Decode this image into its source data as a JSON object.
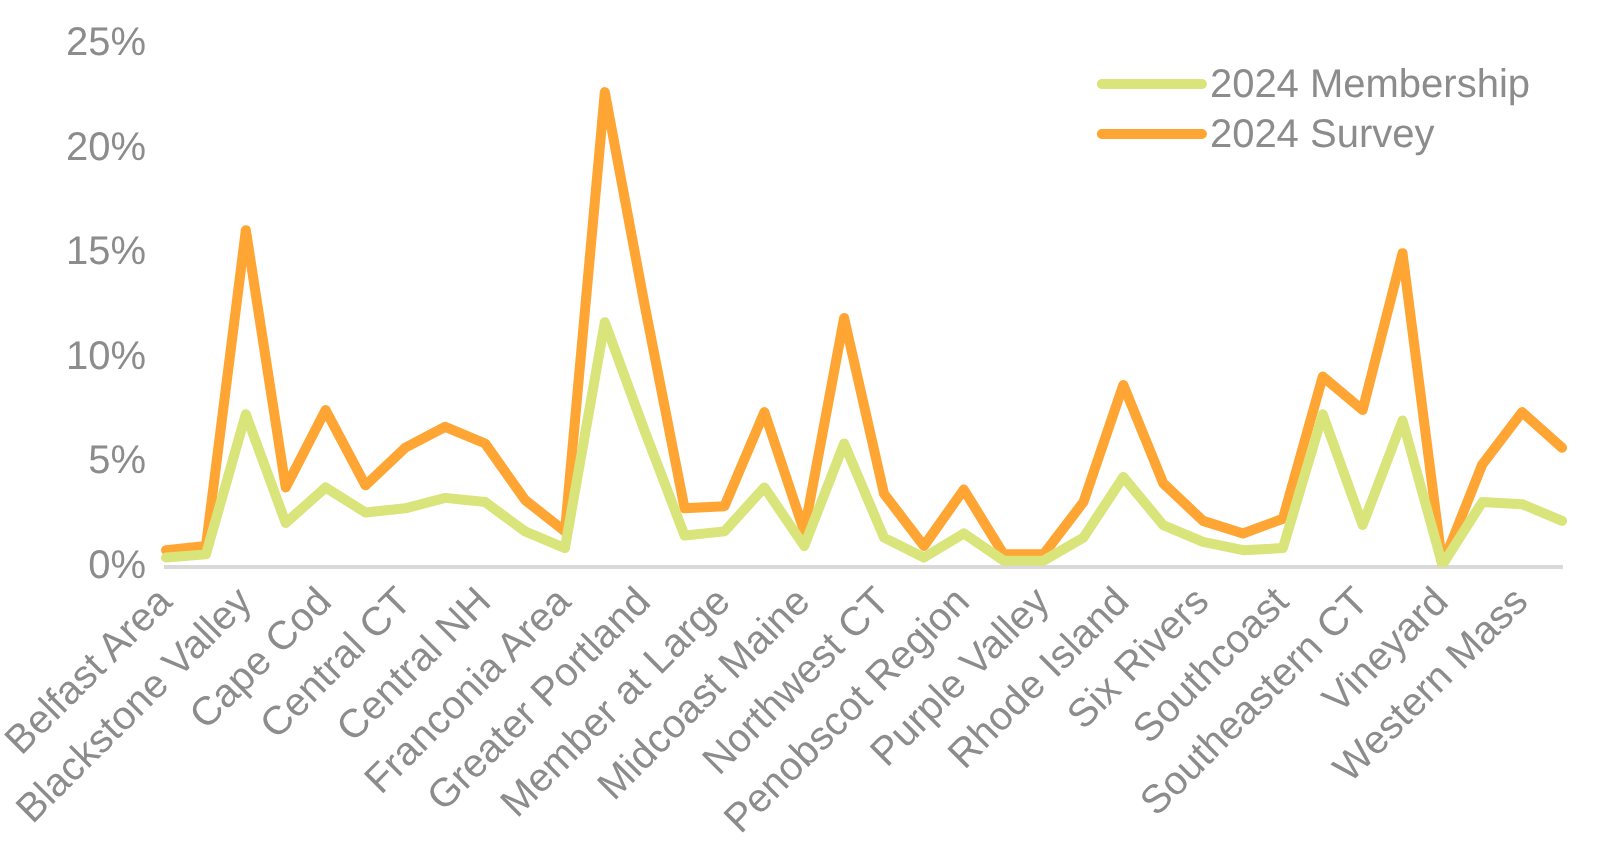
{
  "chart_data": {
    "type": "line",
    "categories": [
      "Belfast Area",
      null,
      "Blackstone Valley",
      null,
      "Cape Cod",
      null,
      "Central CT",
      null,
      "Central NH",
      null,
      "Franconia Area",
      null,
      "Greater Portland",
      null,
      "Member at Large",
      null,
      "Midcoast Maine",
      null,
      "Northwest CT",
      null,
      "Penobscot Region",
      null,
      "Purple Valley",
      null,
      "Rhode Island",
      null,
      "Six Rivers",
      null,
      "Southcoast",
      null,
      "Southeastern CT",
      null,
      "Vineyard",
      null,
      "Western Mass",
      null
    ],
    "series": [
      {
        "name": "2024 Membership",
        "color": "#d9e47a",
        "values": [
          0.45,
          0.6,
          7.3,
          2.1,
          3.8,
          2.6,
          2.8,
          3.3,
          3.1,
          1.7,
          0.9,
          11.7,
          6.5,
          1.5,
          1.7,
          3.8,
          1.0,
          5.9,
          1.4,
          0.45,
          1.6,
          0.3,
          0.3,
          1.4,
          4.3,
          2.0,
          1.2,
          0.8,
          0.9,
          7.3,
          2.0,
          7.0,
          0.1,
          3.1,
          3.0,
          2.2
        ]
      },
      {
        "name": "2024 Survey",
        "color": "#ffa533",
        "values": [
          0.8,
          1.0,
          16.1,
          3.8,
          7.5,
          3.9,
          5.7,
          6.7,
          5.9,
          3.2,
          1.7,
          22.7,
          12.5,
          2.8,
          2.9,
          7.4,
          1.7,
          11.9,
          3.5,
          1.0,
          3.7,
          0.6,
          0.6,
          3.1,
          8.7,
          4.0,
          2.2,
          1.6,
          2.3,
          9.1,
          7.5,
          15.0,
          0.1,
          4.9,
          7.4,
          5.7
        ]
      }
    ],
    "ylim": [
      0,
      25
    ],
    "yticks": [
      {
        "value": 0,
        "label": "0%"
      },
      {
        "value": 5,
        "label": "5%"
      },
      {
        "value": 10,
        "label": "10%"
      },
      {
        "value": 15,
        "label": "15%"
      },
      {
        "value": 20,
        "label": "20%"
      },
      {
        "value": 25,
        "label": "25%"
      }
    ],
    "grid": false,
    "legend": "top right",
    "marker": "none",
    "line_style": "solid"
  }
}
